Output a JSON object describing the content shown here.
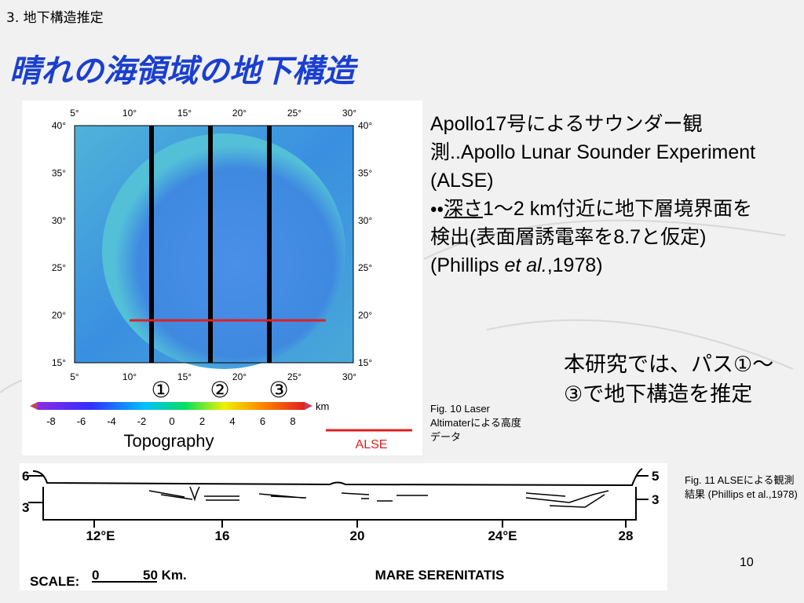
{
  "header": {
    "section": "3. 地下構造推定",
    "title": "晴れの海領域の地下構造"
  },
  "map": {
    "lon_labels": [
      "5°",
      "10°",
      "15°",
      "20°",
      "25°",
      "30°"
    ],
    "lat_labels": [
      "40°",
      "35°",
      "30°",
      "25°",
      "20°",
      "15°"
    ],
    "track_labels": [
      "①",
      "②",
      "③"
    ],
    "colorbar_ticks": [
      "-8",
      "-6",
      "-4",
      "-2",
      "0",
      "2",
      "4",
      "6",
      "8"
    ],
    "colorbar_unit": "km",
    "colorbar_title": "Topography",
    "legend": "ALSE"
  },
  "caption_fig10": {
    "line1": "Fig. 10  Laser",
    "line2": "Altimaterによる高度",
    "line3": "データ"
  },
  "body": {
    "intro": "Apollo17号によるサウンダー観測..Apollo Lunar Sounder Experiment (ALSE)",
    "bullet": "・・",
    "underlined": "深さ",
    "detail": "1～2 km付近に地下層境界面を検出(表面層誘電率を8.7と仮定) (Phillips ",
    "italic": "et al.",
    "cite_end": ",1978)",
    "study": "本研究では、パス①～③で地下構造を推定"
  },
  "profile": {
    "left_ticks": [
      "6",
      "3"
    ],
    "right_ticks": [
      "5",
      "3"
    ],
    "x_labels": [
      "12°E",
      "16",
      "20",
      "24°E",
      "28"
    ],
    "scale_label": "SCALE:",
    "scale_start": "0",
    "scale_end": "50 Km.",
    "name": "MARE SERENITATIS"
  },
  "caption_fig11": "Fig. 11  ALSEによる観測結果 (Phillips et al.,1978)",
  "page_number": "10"
}
